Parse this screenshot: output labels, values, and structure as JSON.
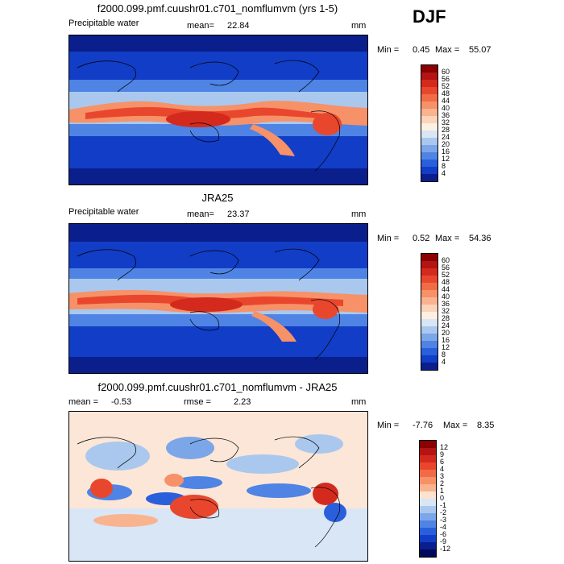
{
  "season": "DJF",
  "panels": [
    {
      "id": "model",
      "title": "f2000.099.pmf.cuushr01.c701_nomflumvm (yrs 1-5)",
      "left_label": "Precipitable water",
      "stat_label": "mean=",
      "stat_value": "22.84",
      "units": "mm",
      "min_label": "Min =",
      "min_value": "0.45",
      "max_label": "Max =",
      "max_value": "55.07",
      "colorbar": {
        "labels": [
          "60",
          "56",
          "52",
          "48",
          "44",
          "40",
          "36",
          "32",
          "28",
          "24",
          "20",
          "16",
          "12",
          "8",
          "4"
        ],
        "colors": [
          "#8b0000",
          "#b41414",
          "#d42a1e",
          "#e8472e",
          "#f26b47",
          "#f79168",
          "#fab38f",
          "#fcd4b9",
          "#fdf0e2",
          "#d8e6f5",
          "#aac8ee",
          "#7ba6e8",
          "#4f84e4",
          "#2a5fdc",
          "#123dc6",
          "#0a1e8c"
        ]
      }
    },
    {
      "id": "obs",
      "title": "JRA25",
      "left_label": "Precipitable water",
      "stat_label": "mean=",
      "stat_value": "23.37",
      "units": "mm",
      "min_label": "Min =",
      "min_value": "0.52",
      "max_label": "Max =",
      "max_value": "54.36",
      "colorbar": {
        "labels": [
          "60",
          "56",
          "52",
          "48",
          "44",
          "40",
          "36",
          "32",
          "28",
          "24",
          "20",
          "16",
          "12",
          "8",
          "4"
        ],
        "colors": [
          "#8b0000",
          "#b41414",
          "#d42a1e",
          "#e8472e",
          "#f26b47",
          "#f79168",
          "#fab38f",
          "#fcd4b9",
          "#fdf0e2",
          "#d8e6f5",
          "#aac8ee",
          "#7ba6e8",
          "#4f84e4",
          "#2a5fdc",
          "#123dc6",
          "#0a1e8c"
        ]
      }
    },
    {
      "id": "diff",
      "title": "f2000.099.pmf.cuushr01.c701_nomflumvm - JRA25",
      "left_label": "",
      "stat_label": "mean =",
      "stat_value": "-0.53",
      "stat2_label": "rmse =",
      "stat2_value": "2.23",
      "units": "mm",
      "min_label": "Min =",
      "min_value": "-7.76",
      "max_label": "Max =",
      "max_value": "8.35",
      "colorbar": {
        "labels": [
          "12",
          "9",
          "6",
          "4",
          "3",
          "2",
          "1",
          "0",
          "-1",
          "-2",
          "-3",
          "-4",
          "-6",
          "-9",
          "-12"
        ],
        "colors": [
          "#8b0000",
          "#b41414",
          "#d42a1e",
          "#e8472e",
          "#f26b47",
          "#f79168",
          "#fab38f",
          "#fde2d0",
          "#d8e6f5",
          "#aac8ee",
          "#7ba6e8",
          "#4f84e4",
          "#2a5fdc",
          "#123dc6",
          "#0a1e8c",
          "#000a5a"
        ]
      }
    }
  ]
}
